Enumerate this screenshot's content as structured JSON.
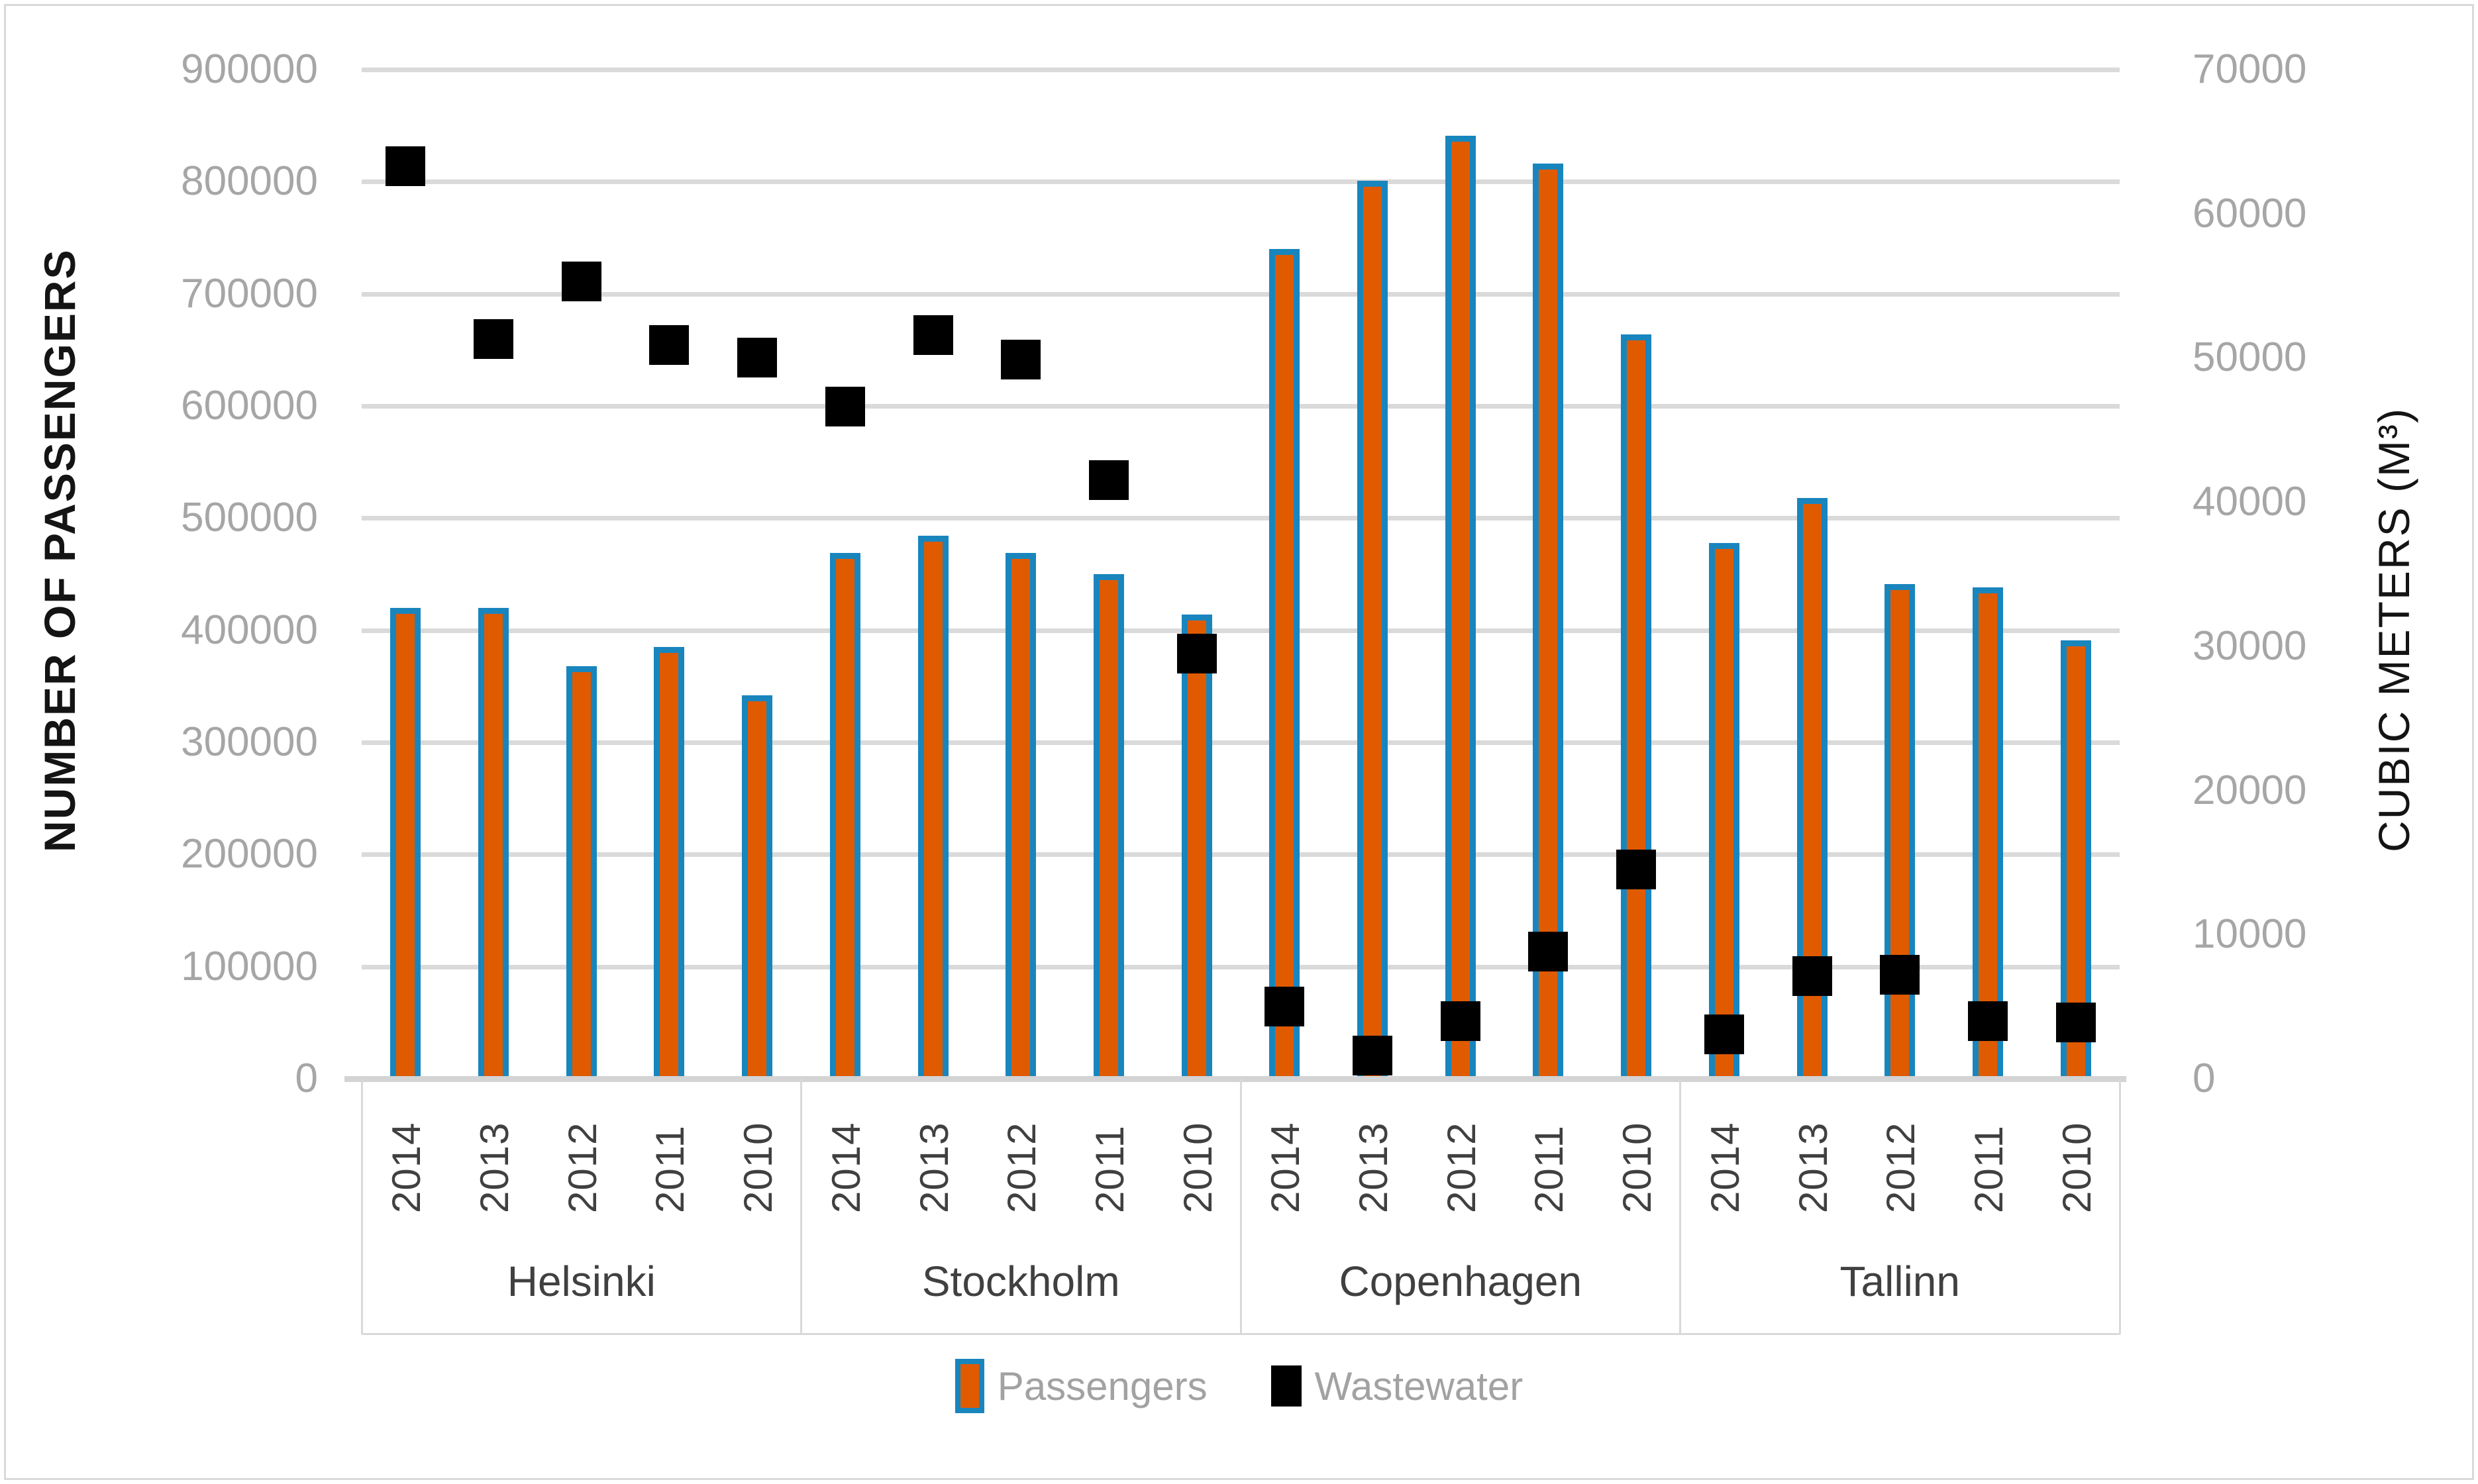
{
  "chart_data": {
    "type": "bar",
    "subtype": "dual-axis grouped bars with square scatter markers",
    "title": "",
    "grid": true,
    "legend": {
      "position": "bottom",
      "items": [
        {
          "label": "Passengers",
          "swatch": "orange-bar-with-blue-border"
        },
        {
          "label": "Wastewater",
          "swatch": "black-square"
        }
      ]
    },
    "left_axis": {
      "title": "NUMBER OF PASSENGERS",
      "min": 0,
      "max": 900000,
      "step": 100000,
      "tick_labels": [
        "0",
        "100000",
        "200000",
        "300000",
        "400000",
        "500000",
        "600000",
        "700000",
        "800000",
        "900000"
      ]
    },
    "right_axis": {
      "title": "CUBIC METERS (M³)",
      "min": 0,
      "max": 70000,
      "step": 10000,
      "tick_labels": [
        "0",
        "10000",
        "20000",
        "30000",
        "40000",
        "50000",
        "60000",
        "70000"
      ]
    },
    "cities": [
      "Helsinki",
      "Stockholm",
      "Copenhagen",
      "Tallinn"
    ],
    "years": [
      "2014",
      "2013",
      "2012",
      "2011",
      "2010"
    ],
    "series": [
      {
        "name": "Passengers",
        "axis": "left",
        "mark": "bar",
        "fill_color": "#E05A00",
        "border_color": "#1985BD",
        "values": {
          "Helsinki": [
            420000,
            420000,
            368000,
            385000,
            342000
          ],
          "Stockholm": [
            469000,
            484000,
            469000,
            450000,
            414000
          ],
          "Copenhagen": [
            740000,
            801000,
            841000,
            816000,
            664000
          ],
          "Tallinn": [
            478000,
            518000,
            441000,
            438000,
            391000
          ]
        }
      },
      {
        "name": "Wastewater",
        "axis": "right",
        "mark": "square",
        "fill_color": "#000000",
        "values": {
          "Helsinki": [
            63300,
            51300,
            55300,
            50900,
            50000
          ],
          "Stockholm": [
            46600,
            51600,
            49900,
            41500,
            29500
          ],
          "Copenhagen": [
            5000,
            1600,
            4000,
            8800,
            14500
          ],
          "Tallinn": [
            3100,
            7100,
            7200,
            4000,
            3900
          ]
        }
      }
    ],
    "colors": {
      "background": "#FFFFFF",
      "frame": "#D9D9D9",
      "gridline": "#DADADA",
      "axis_line": "#D4D4D4",
      "tick_label": "#A6A6A6",
      "category_label": "#404040",
      "axis_title": "#141414",
      "bar_fill": "#E05A00",
      "bar_border": "#1985BD",
      "marker": "#000000"
    }
  }
}
